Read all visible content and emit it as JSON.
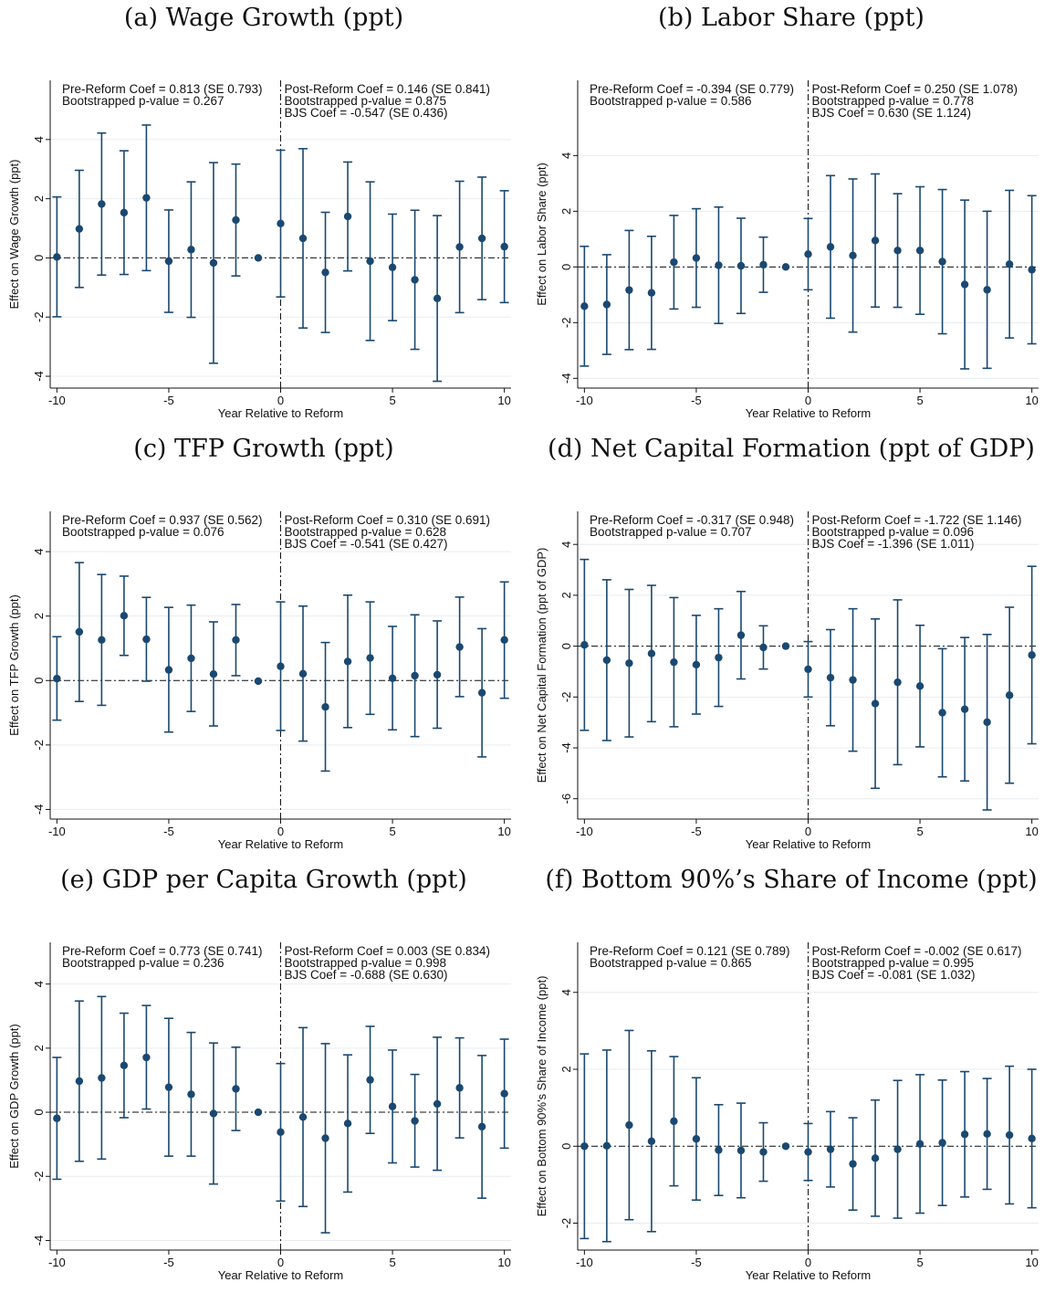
{
  "chart_data": [
    {
      "type": "scatter",
      "title": "(a) Wage Growth (ppt)",
      "xlabel": "Year Relative to Reform",
      "ylabel": "Effect on Wage Growth (ppt)",
      "ylim": [
        -4.4,
        6.0
      ],
      "yticks": [
        -4,
        -2,
        0,
        2,
        4
      ],
      "xlim": [
        -10.3,
        10.3
      ],
      "xticks": [
        -10,
        -5,
        0,
        5,
        10
      ],
      "grid": true,
      "x": [
        -10,
        -9,
        -8,
        -7,
        -6,
        -5,
        -4,
        -3,
        -2,
        -1,
        0,
        1,
        2,
        3,
        4,
        5,
        6,
        7,
        8,
        9,
        10
      ],
      "values": [
        0.03,
        0.98,
        1.82,
        1.53,
        2.03,
        -0.11,
        0.28,
        -0.17,
        1.28,
        0.0,
        1.16,
        0.66,
        -0.49,
        1.4,
        -0.11,
        -0.32,
        -0.74,
        -1.37,
        0.37,
        0.66,
        0.38
      ],
      "ci_low": [
        -1.99,
        -1.0,
        -0.58,
        -0.56,
        -0.43,
        -1.84,
        -2.01,
        -3.56,
        -0.61,
        0.0,
        -1.32,
        -2.37,
        -2.52,
        -0.44,
        -2.79,
        -2.12,
        -3.09,
        -4.17,
        -1.85,
        -1.41,
        -1.51
      ],
      "ci_high": [
        2.06,
        2.96,
        4.22,
        3.62,
        4.49,
        1.62,
        2.57,
        3.22,
        3.17,
        0.0,
        3.64,
        3.69,
        1.54,
        3.24,
        2.57,
        1.48,
        1.61,
        1.43,
        2.59,
        2.73,
        2.27
      ],
      "annotations": {
        "pre": [
          "Pre-Reform Coef = 0.813 (SE 0.793)",
          "Bootstrapped p-value = 0.267"
        ],
        "post": [
          "Post-Reform Coef = 0.146 (SE 0.841)",
          "Bootstrapped p-value = 0.875",
          "BJS Coef = -0.547 (SE 0.436)"
        ]
      }
    },
    {
      "type": "scatter",
      "title": "(b) Labor Share (ppt)",
      "xlabel": "Year Relative to Reform",
      "ylabel": "Effect on Labor Share (ppt)",
      "ylim": [
        -4.35,
        6.7
      ],
      "yticks": [
        -4,
        -2,
        0,
        2,
        4
      ],
      "xlim": [
        -10.3,
        10.3
      ],
      "xticks": [
        -10,
        -5,
        0,
        5,
        10
      ],
      "grid": true,
      "x": [
        -10,
        -9,
        -8,
        -7,
        -6,
        -5,
        -4,
        -3,
        -2,
        -1,
        0,
        1,
        2,
        3,
        4,
        5,
        6,
        7,
        8,
        9,
        10
      ],
      "values": [
        -1.41,
        -1.35,
        -0.83,
        -0.93,
        0.17,
        0.32,
        0.06,
        0.04,
        0.08,
        0.0,
        0.46,
        0.72,
        0.41,
        0.95,
        0.59,
        0.59,
        0.19,
        -0.63,
        -0.82,
        0.1,
        -0.1
      ],
      "ci_low": [
        -3.56,
        -3.14,
        -2.97,
        -2.96,
        -1.51,
        -1.45,
        -2.03,
        -1.67,
        -0.91,
        0.0,
        -0.82,
        -1.84,
        -2.34,
        -1.44,
        -1.45,
        -1.7,
        -2.4,
        -3.66,
        -3.64,
        -2.55,
        -2.76
      ],
      "ci_high": [
        0.74,
        0.44,
        1.31,
        1.1,
        1.85,
        2.09,
        2.15,
        1.75,
        1.07,
        0.0,
        1.74,
        3.28,
        3.16,
        3.34,
        2.63,
        2.88,
        2.78,
        2.4,
        2.0,
        2.75,
        2.56
      ],
      "annotations": {
        "pre": [
          "Pre-Reform Coef = -0.394 (SE 0.779)",
          "Bootstrapped p-value = 0.586"
        ],
        "post": [
          "Post-Reform Coef = 0.250 (SE 1.078)",
          "Bootstrapped p-value = 0.778",
          "BJS Coef = 0.630 (SE 1.124)"
        ]
      }
    },
    {
      "type": "scatter",
      "title": "(c) TFP Growth (ppt)",
      "xlabel": "Year Relative to Reform",
      "ylabel": "Effect on TFP Growth (ppt)",
      "ylim": [
        -4.3,
        5.25
      ],
      "yticks": [
        -4,
        -2,
        0,
        2,
        4
      ],
      "xlim": [
        -10.3,
        10.3
      ],
      "xticks": [
        -10,
        -5,
        0,
        5,
        10
      ],
      "grid": true,
      "x": [
        -10,
        -9,
        -8,
        -7,
        -6,
        -5,
        -4,
        -3,
        -2,
        -1,
        0,
        1,
        2,
        3,
        4,
        5,
        6,
        7,
        8,
        9,
        10
      ],
      "values": [
        0.06,
        1.51,
        1.26,
        2.01,
        1.28,
        0.33,
        0.69,
        0.2,
        1.26,
        -0.02,
        0.44,
        0.21,
        -0.82,
        0.59,
        0.7,
        0.07,
        0.15,
        0.18,
        1.04,
        -0.38,
        1.26
      ],
      "ci_low": [
        -1.23,
        -0.65,
        -0.77,
        0.78,
        -0.02,
        -1.6,
        -0.96,
        -1.41,
        0.15,
        -0.02,
        -1.55,
        -1.88,
        -2.81,
        -1.46,
        -1.05,
        -1.53,
        -1.74,
        -1.48,
        -0.5,
        -2.37,
        -0.55
      ],
      "ci_high": [
        1.36,
        3.66,
        3.29,
        3.24,
        2.58,
        2.27,
        2.34,
        1.82,
        2.36,
        -0.02,
        2.44,
        2.31,
        1.18,
        2.65,
        2.44,
        1.68,
        2.04,
        1.85,
        2.59,
        1.61,
        3.06
      ],
      "annotations": {
        "pre": [
          "Pre-Reform Coef = 0.937 (SE 0.562)",
          "Bootstrapped p-value = 0.076"
        ],
        "post": [
          "Post-Reform Coef = 0.310 (SE 0.691)",
          "Bootstrapped p-value = 0.628",
          "BJS Coef = -0.541 (SE 0.427)"
        ]
      }
    },
    {
      "type": "scatter",
      "title": "(d) Net Capital Formation (ppt of GDP)",
      "xlabel": "Year Relative to Reform",
      "ylabel": "Effect on Net Capital Formation (ppt of GDP)",
      "ylim": [
        -6.8,
        5.3
      ],
      "yticks": [
        -6,
        -4,
        -2,
        0,
        2,
        4
      ],
      "xlim": [
        -10.3,
        10.3
      ],
      "xticks": [
        -10,
        -5,
        0,
        5,
        10
      ],
      "grid": true,
      "x": [
        -10,
        -9,
        -8,
        -7,
        -6,
        -5,
        -4,
        -3,
        -2,
        -1,
        0,
        1,
        2,
        3,
        4,
        5,
        6,
        7,
        8,
        9,
        10
      ],
      "values": [
        0.05,
        -0.55,
        -0.67,
        -0.29,
        -0.63,
        -0.73,
        -0.45,
        0.43,
        -0.05,
        0.0,
        -0.91,
        -1.24,
        -1.33,
        -2.26,
        -1.42,
        -1.57,
        -2.62,
        -2.48,
        -2.99,
        -1.93,
        -0.35
      ],
      "ci_low": [
        -3.31,
        -3.71,
        -3.57,
        -2.97,
        -3.17,
        -2.67,
        -2.37,
        -1.29,
        -0.9,
        0.0,
        -2.0,
        -3.13,
        -4.13,
        -5.59,
        -4.66,
        -3.96,
        -5.14,
        -5.3,
        -6.44,
        -5.39,
        -3.84
      ],
      "ci_high": [
        3.41,
        2.61,
        2.23,
        2.39,
        1.91,
        1.21,
        1.47,
        2.15,
        0.8,
        0.0,
        0.18,
        0.65,
        1.47,
        1.07,
        1.82,
        0.82,
        -0.1,
        0.34,
        0.46,
        1.53,
        3.14
      ],
      "annotations": {
        "pre": [
          "Pre-Reform Coef = -0.317 (SE 0.948)",
          "Bootstrapped p-value = 0.707"
        ],
        "post": [
          "Post-Reform Coef = -1.722 (SE 1.146)",
          "Bootstrapped p-value = 0.096",
          "BJS Coef = -1.396 (SE 1.011)"
        ]
      }
    },
    {
      "type": "scatter",
      "title": "(e) GDP per Capita Growth (ppt)",
      "xlabel": "Year Relative to Reform",
      "ylabel": "Effect on GDP Growth (ppt)",
      "ylim": [
        -4.3,
        5.3
      ],
      "yticks": [
        -4,
        -2,
        0,
        2,
        4
      ],
      "xlim": [
        -10.3,
        10.3
      ],
      "xticks": [
        -10,
        -5,
        0,
        5,
        10
      ],
      "grid": true,
      "x": [
        -10,
        -9,
        -8,
        -7,
        -6,
        -5,
        -4,
        -3,
        -2,
        -1,
        0,
        1,
        2,
        3,
        4,
        5,
        6,
        7,
        8,
        9,
        10
      ],
      "values": [
        -0.19,
        0.97,
        1.07,
        1.46,
        1.71,
        0.78,
        0.56,
        -0.04,
        0.73,
        0.0,
        -0.62,
        -0.15,
        -0.81,
        -0.35,
        1.01,
        0.18,
        -0.27,
        0.26,
        0.76,
        -0.45,
        0.58
      ],
      "ci_low": [
        -2.09,
        -1.53,
        -1.46,
        -0.17,
        0.1,
        -1.37,
        -1.37,
        -2.24,
        -0.57,
        0.0,
        -2.77,
        -2.94,
        -3.76,
        -2.49,
        -0.66,
        -1.58,
        -1.71,
        -1.81,
        -0.8,
        -2.68,
        -1.12
      ],
      "ci_high": [
        1.71,
        3.47,
        3.61,
        3.09,
        3.33,
        2.93,
        2.49,
        2.16,
        2.03,
        0.0,
        1.52,
        2.64,
        2.14,
        1.79,
        2.68,
        1.94,
        1.18,
        2.34,
        2.32,
        1.77,
        2.28
      ],
      "annotations": {
        "pre": [
          "Pre-Reform Coef = 0.773 (SE 0.741)",
          "Bootstrapped p-value = 0.236"
        ],
        "post": [
          "Post-Reform Coef = 0.003 (SE 0.834)",
          "Bootstrapped p-value = 0.998",
          "BJS Coef = -0.688 (SE 0.630)"
        ]
      }
    },
    {
      "type": "scatter",
      "title": "(f) Bottom 90%’s Share of Income (ppt)",
      "xlabel": "Year Relative to Reform",
      "ylabel": "Effect on Bottom 90%'s Share of Income (ppt)",
      "ylim": [
        -2.7,
        5.3
      ],
      "yticks": [
        -2,
        0,
        2,
        4
      ],
      "xlim": [
        -10.3,
        10.3
      ],
      "xticks": [
        -10,
        -5,
        0,
        5,
        10
      ],
      "grid": true,
      "x": [
        -10,
        -9,
        -8,
        -7,
        -6,
        -5,
        -4,
        -3,
        -2,
        -1,
        0,
        1,
        2,
        3,
        4,
        5,
        6,
        7,
        8,
        9,
        10
      ],
      "values": [
        0.0,
        0.01,
        0.55,
        0.13,
        0.65,
        0.19,
        -0.1,
        -0.11,
        -0.15,
        0.0,
        -0.15,
        -0.08,
        -0.46,
        -0.31,
        -0.08,
        0.06,
        0.09,
        0.31,
        0.32,
        0.29,
        0.2
      ],
      "ci_low": [
        -2.4,
        -2.48,
        -1.91,
        -2.22,
        -1.03,
        -1.4,
        -1.28,
        -1.34,
        -0.91,
        0.0,
        -0.89,
        -1.06,
        -1.66,
        -1.82,
        -1.87,
        -1.74,
        -1.54,
        -1.32,
        -1.12,
        -1.5,
        -1.6
      ],
      "ci_high": [
        2.4,
        2.5,
        3.01,
        2.48,
        2.33,
        1.78,
        1.08,
        1.12,
        0.61,
        0.0,
        0.59,
        0.9,
        0.74,
        1.2,
        1.71,
        1.86,
        1.72,
        1.94,
        1.76,
        2.08,
        2.0
      ],
      "annotations": {
        "pre": [
          "Pre-Reform Coef = 0.121 (SE 0.789)",
          "Bootstrapped p-value = 0.865"
        ],
        "post": [
          "Post-Reform Coef = -0.002 (SE 0.617)",
          "Bootstrapped p-value = 0.995",
          "BJS Coef = -0.081 (SE 1.032)"
        ]
      }
    }
  ],
  "colors": {
    "marker": "#1a4870",
    "grid": "#e8edf1",
    "axis": "#111111",
    "reference_line": "#111111"
  }
}
